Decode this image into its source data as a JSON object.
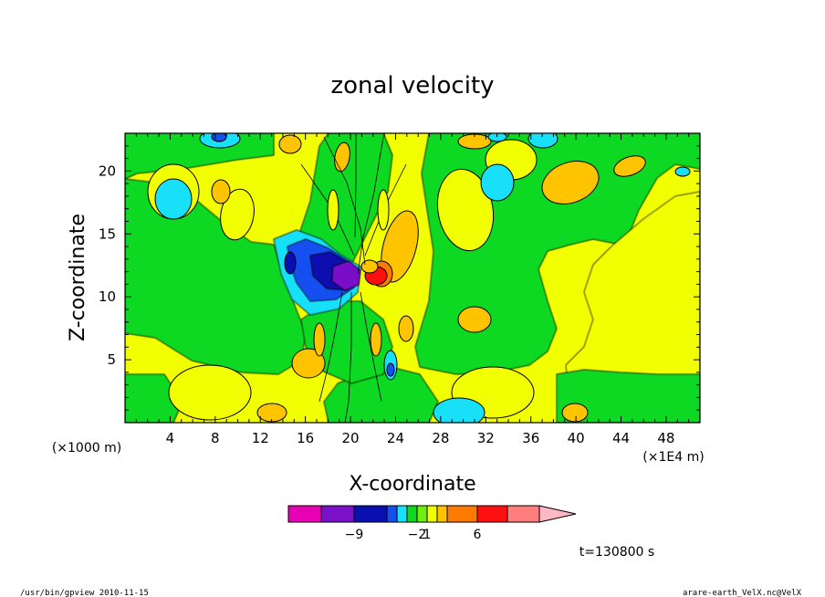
{
  "chart_data": {
    "type": "heatmap",
    "title": "zonal velocity",
    "xlabel": "X-coordinate",
    "ylabel": "Z-coordinate",
    "x_unit_left": "(×1000 m)",
    "x_unit_right": "(×1E4 m)",
    "xlim": [
      0,
      51
    ],
    "ylim": [
      0,
      23
    ],
    "x_ticks": [
      4,
      8,
      12,
      16,
      20,
      24,
      28,
      32,
      36,
      40,
      44,
      48
    ],
    "y_ticks": [
      5,
      10,
      15,
      20
    ],
    "grid": false,
    "colorbar": {
      "orientation": "horizontal",
      "extend": "max",
      "tick_labels": [
        "-9",
        "-2",
        "1",
        "6"
      ],
      "colors": [
        "#e800b4",
        "#7a10c8",
        "#0a10b0",
        "#1450f0",
        "#18e0f8",
        "#10d820",
        "#70ee10",
        "#f2ff00",
        "#ffc400",
        "#ff7a00",
        "#ff1010",
        "#ff7d7d",
        "#ffb8c4"
      ]
    },
    "field_features": [
      {
        "x": 20.0,
        "z": 11.8,
        "level": -9,
        "shape": "core"
      },
      {
        "x": 18.0,
        "z": 11.8,
        "level": -7
      },
      {
        "x": 14.6,
        "z": 12.7,
        "level": -7
      },
      {
        "x": 16.0,
        "z": 12.0,
        "level": -4
      },
      {
        "x": 21.5,
        "z": 11.8,
        "level": 5
      },
      {
        "x": 22.4,
        "z": 11.0,
        "level": 3
      },
      {
        "x": 8.3,
        "z": 22.3,
        "level": -4
      },
      {
        "x": 5.2,
        "z": 18.0,
        "level": -2
      },
      {
        "x": 31.2,
        "z": 19.0,
        "level": -2
      },
      {
        "x": 27.7,
        "z": 0.8,
        "level": -2
      },
      {
        "x": 22.8,
        "z": 3.6,
        "level": -4
      },
      {
        "x": 14.0,
        "z": 1.0,
        "level": 3
      },
      {
        "x": 40.0,
        "z": 17.5,
        "level": 3
      },
      {
        "x": 30.2,
        "z": 8.5,
        "level": 3
      },
      {
        "x": 41.0,
        "z": 3.0,
        "level": 3
      }
    ]
  },
  "annotations": {
    "time_label": "t=130800 s",
    "footer_left": "/usr/bin/gpview   2010-11-15",
    "footer_right": "arare-earth_VelX.nc@VelX"
  }
}
